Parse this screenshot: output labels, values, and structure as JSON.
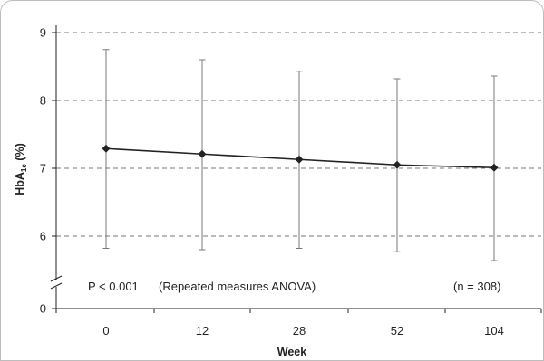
{
  "chart_data": {
    "type": "line",
    "title": "",
    "xlabel": "Week",
    "ylabel": {
      "main": "HbA",
      "sub": "1c",
      "unit": " (%)"
    },
    "x": [
      "0",
      "12",
      "28",
      "52",
      "104"
    ],
    "series": [
      {
        "values": [
          7.29,
          7.21,
          7.13,
          7.05,
          7.01
        ],
        "error_upper": [
          8.75,
          8.6,
          8.43,
          8.32,
          8.36
        ],
        "error_lower": [
          5.82,
          5.8,
          5.82,
          5.77,
          5.64
        ]
      }
    ],
    "y_ticks": [
      "0",
      "6",
      "7",
      "8",
      "9"
    ],
    "y_axis_break": true,
    "grid": "dashed-horizontal",
    "annotations": {
      "p_value": "P < 0.001",
      "test": "(Repeated measures ANOVA)",
      "n": "(n = 308)"
    },
    "colors": {
      "line": "#222222",
      "grid": "#777777",
      "error": "#7a7a7a"
    }
  }
}
